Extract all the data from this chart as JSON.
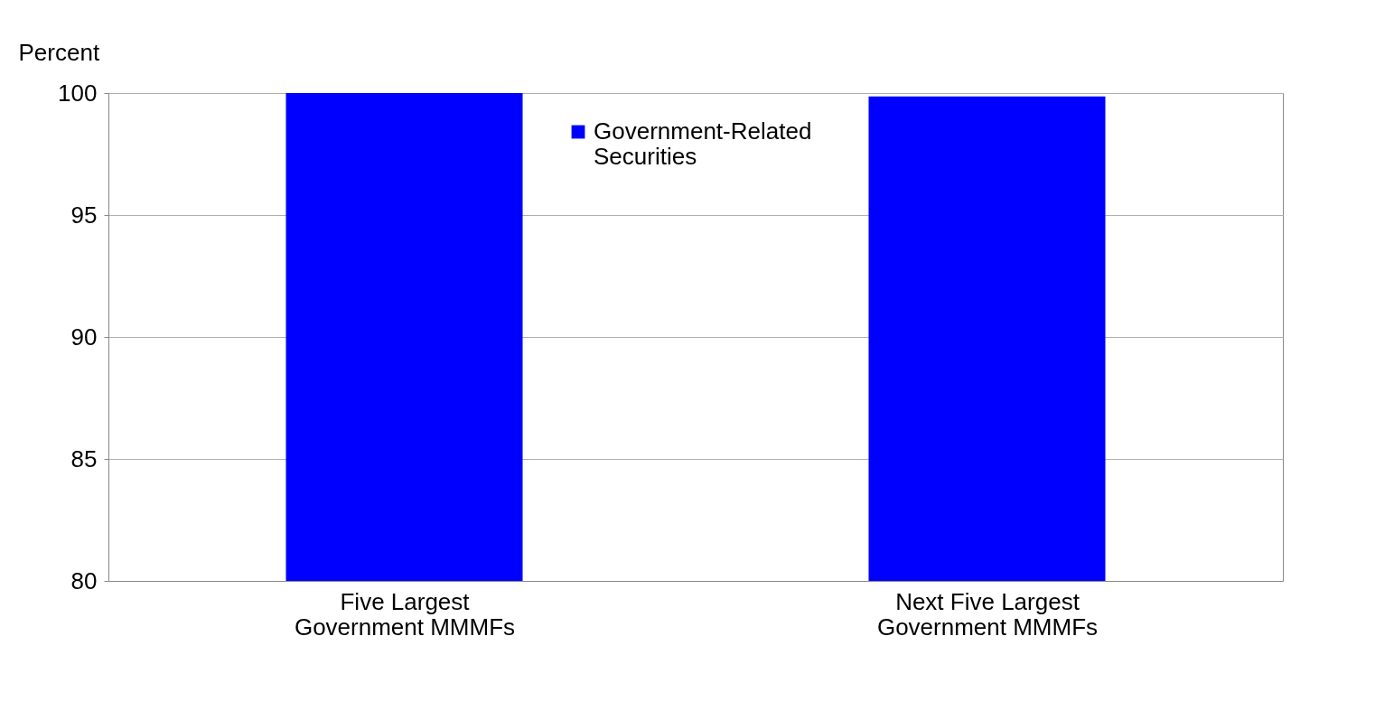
{
  "chart_data": {
    "type": "bar",
    "ylabel": "Percent",
    "categories": [
      "Five Largest\nGovernment MMMFs",
      "Next Five Largest\nGovernment MMMFs"
    ],
    "series": [
      {
        "name": "Government-Related\nSecurities",
        "color": "#0000ff",
        "values": [
          100,
          99.86
        ]
      }
    ],
    "ylim": [
      80,
      100
    ],
    "yticks": [
      80,
      85,
      90,
      95,
      100
    ],
    "grid": "y",
    "legend": "top"
  }
}
